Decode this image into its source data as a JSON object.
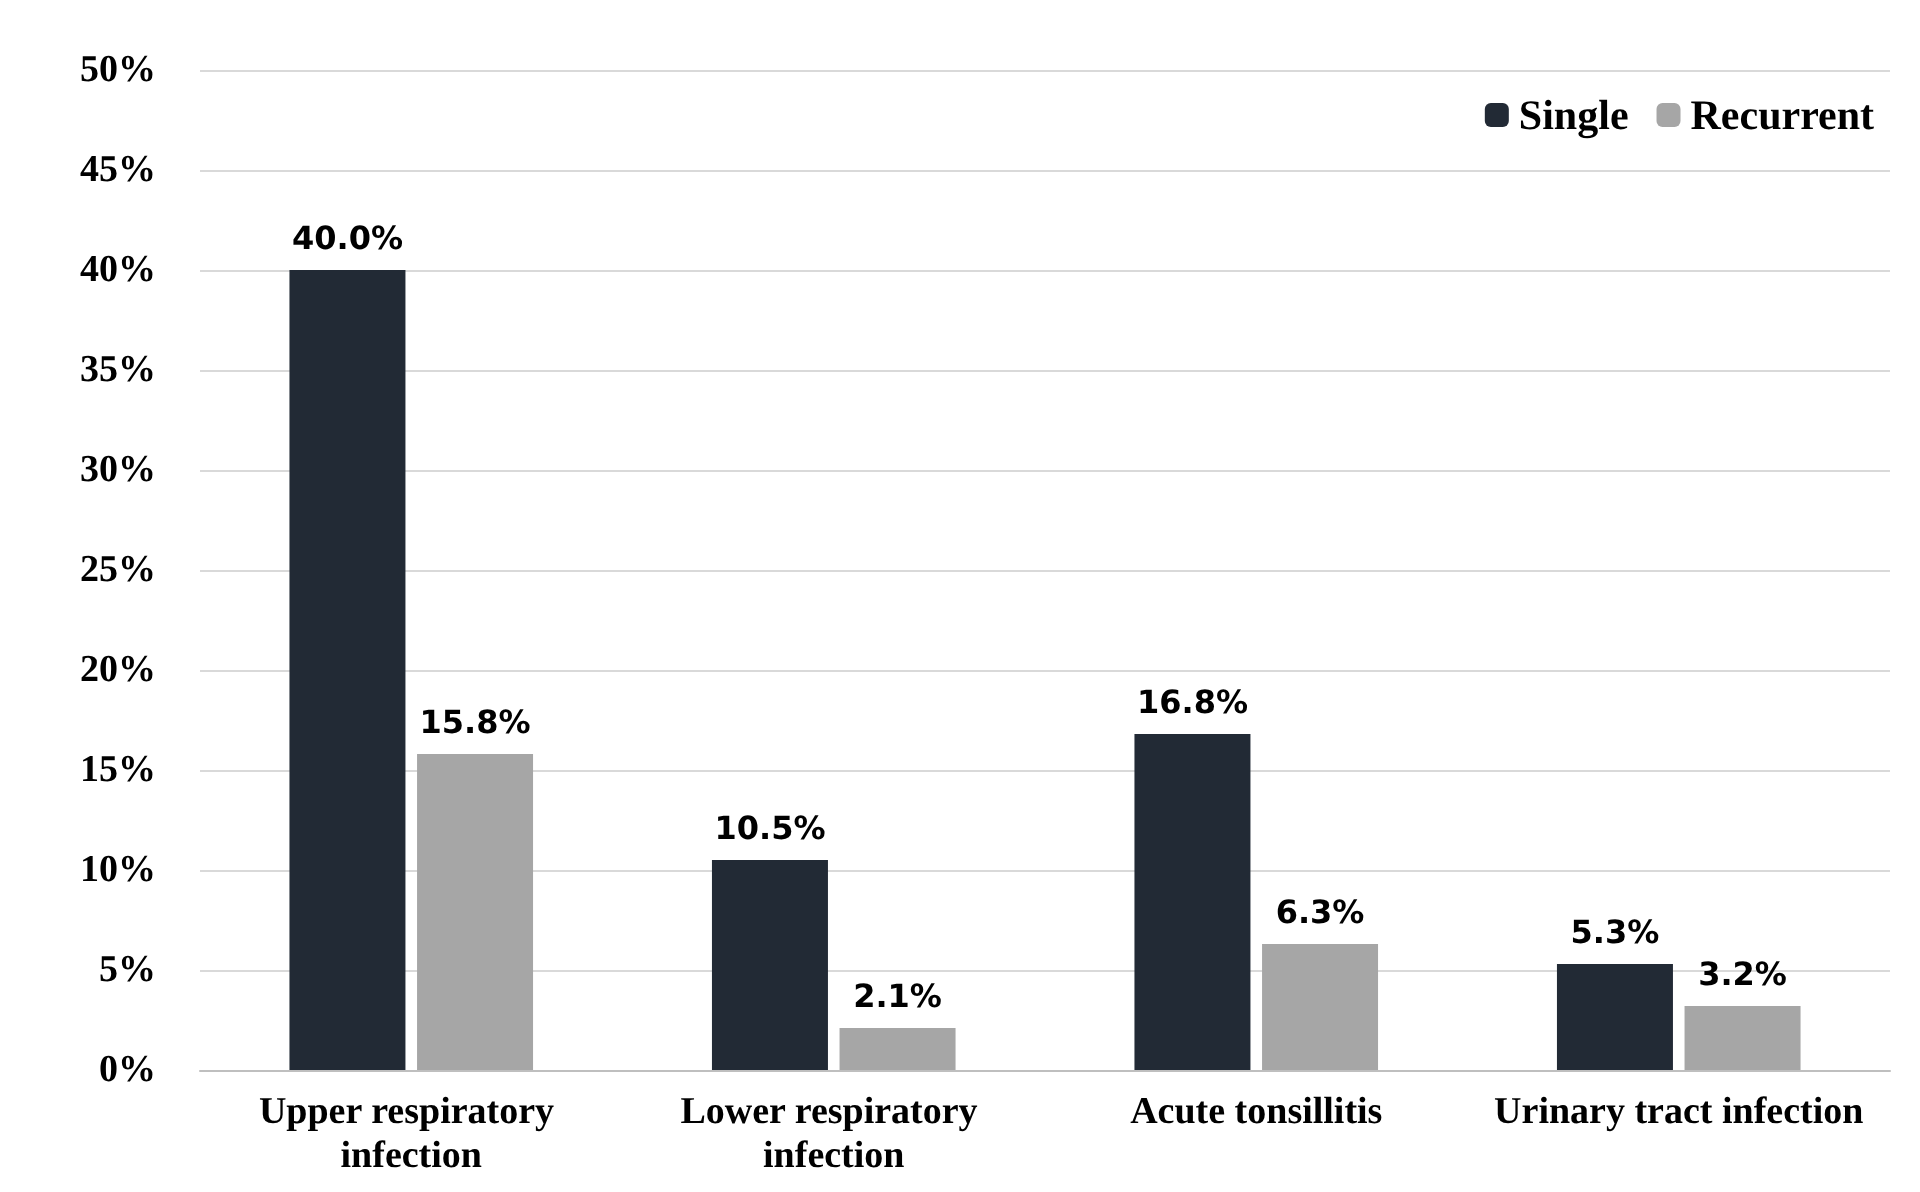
{
  "chart_data": {
    "type": "bar",
    "categories": [
      "Upper respiratory infection",
      "Lower respiratory infection",
      "Acute tonsillitis",
      "Urinary tract infection"
    ],
    "series": [
      {
        "name": "Single",
        "color": "#222a35",
        "values": [
          40.0,
          10.5,
          16.8,
          5.3
        ],
        "value_labels": [
          "40.0%",
          "10.5%",
          "16.8%",
          "5.3%"
        ]
      },
      {
        "name": "Recurrent",
        "color": "#a6a6a6",
        "values": [
          15.8,
          2.1,
          6.3,
          3.2
        ],
        "value_labels": [
          "15.8%",
          "2.1%",
          "6.3%",
          "3.2%"
        ]
      }
    ],
    "ylim": [
      0,
      50
    ],
    "yticks": [
      {
        "value": 0,
        "label": "0%"
      },
      {
        "value": 5,
        "label": "5%"
      },
      {
        "value": 10,
        "label": "10%"
      },
      {
        "value": 15,
        "label": "15%"
      },
      {
        "value": 20,
        "label": "20%"
      },
      {
        "value": 25,
        "label": "25%"
      },
      {
        "value": 30,
        "label": "30%"
      },
      {
        "value": 35,
        "label": "35%"
      },
      {
        "value": 40,
        "label": "40%"
      },
      {
        "value": 45,
        "label": "45%"
      },
      {
        "value": 50,
        "label": "50%"
      }
    ],
    "grid": "y",
    "legend": "top right"
  }
}
